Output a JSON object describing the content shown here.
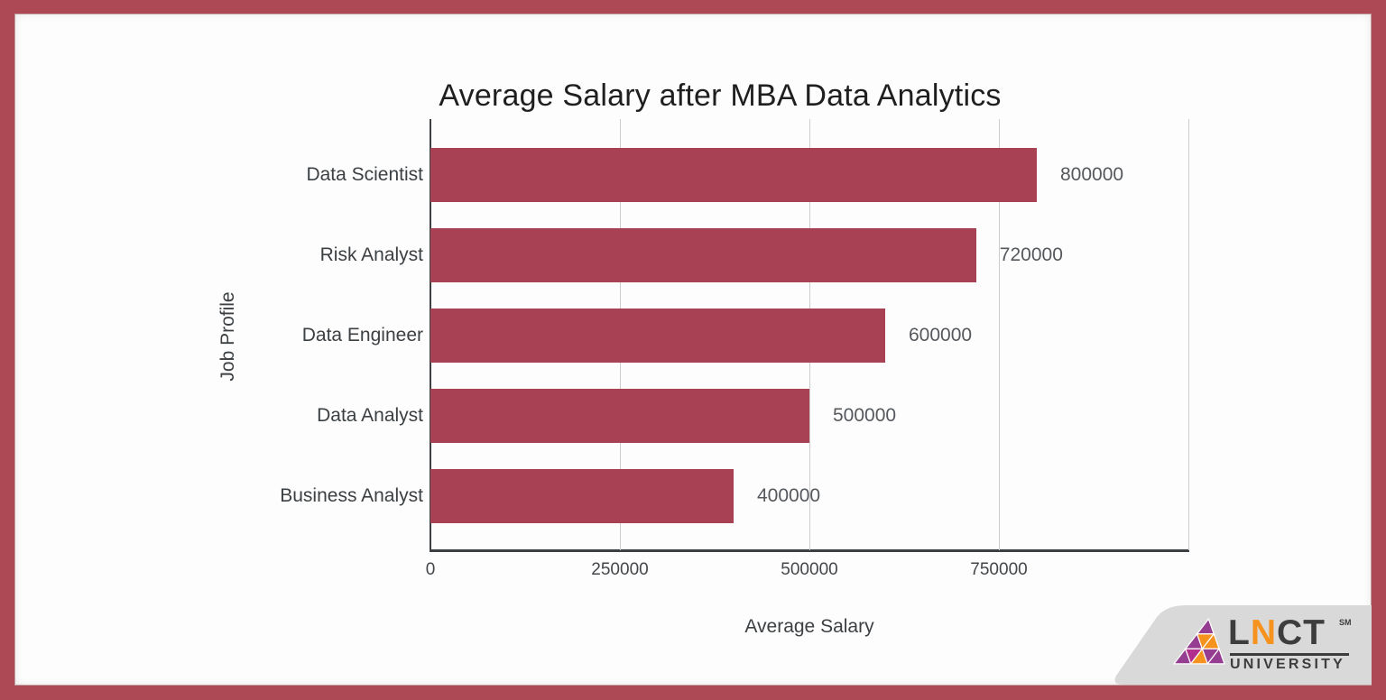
{
  "chart_data": {
    "type": "bar",
    "orientation": "horizontal",
    "title": "Average Salary after MBA Data Analytics",
    "categories": [
      "Data Scientist",
      "Risk Analyst",
      "Data Engineer",
      "Data Analyst",
      "Business Analyst"
    ],
    "values": [
      800000,
      720000,
      600000,
      500000,
      400000
    ],
    "data_labels": [
      "800000",
      "720000",
      "600000",
      "500000",
      "400000"
    ],
    "xlabel": "Average Salary",
    "ylabel": "Job Profile",
    "xlim": [
      0,
      1000000
    ],
    "xticks": [
      0,
      250000,
      500000,
      750000
    ],
    "xtick_labels": [
      "0",
      "250000",
      "500000",
      "750000"
    ],
    "grid": true,
    "legend": false,
    "bar_color": "#a84154"
  },
  "colors": {
    "frame_border": "#ad4954",
    "background": "#fdfdfd",
    "bar": "#a84154",
    "gridline": "#cccccc",
    "axis_line": "#3c4043",
    "banner_gray": "#d9d9d9",
    "logo_purple": "#953d90",
    "logo_magenta": "#b12e8c",
    "logo_orange": "#f6921e",
    "logo_text": "#3d3d3d"
  },
  "logo": {
    "letters": {
      "l1": "L",
      "l2": "N",
      "l3": "C",
      "l4": "T"
    },
    "subtitle": "UNIVERSITY",
    "trademark": "SM"
  }
}
